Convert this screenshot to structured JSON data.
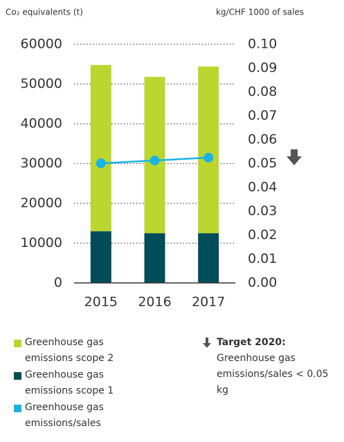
{
  "chart_data": {
    "type": "bar",
    "y_label": "Co₂ equivalents (t)",
    "y2_label": "kg/CHF 1000 of sales",
    "categories": [
      "2015",
      "2016",
      "2017"
    ],
    "series": [
      {
        "name": "Greenhouse gas emissions scope 2",
        "color": "#bcd630",
        "type": "bar",
        "values": [
          41800,
          39300,
          41900
        ]
      },
      {
        "name": "Greenhouse gas emissions scope 1",
        "color": "#004d5a",
        "type": "bar",
        "values": [
          13000,
          12500,
          12500
        ]
      },
      {
        "name": "Greenhouse gas emissions/sales",
        "color": "#19b3e6",
        "type": "line",
        "axis": "y2",
        "values": [
          0.0501,
          0.0513,
          0.0525
        ]
      }
    ],
    "ylim": [
      0,
      60000
    ],
    "yticks": [
      0,
      10000,
      20000,
      30000,
      40000,
      50000,
      60000
    ],
    "y2lim": [
      0,
      0.1
    ],
    "y2ticks": [
      {
        "value": 0,
        "label": "0.00"
      },
      {
        "value": 0.01,
        "label": "0.01"
      },
      {
        "value": 0.02,
        "label": "0.02"
      },
      {
        "value": 0.03,
        "label": "0.03"
      },
      {
        "value": 0.04,
        "label": "0.04"
      },
      {
        "value": 0.05,
        "label": "0.05"
      },
      {
        "value": 0.06,
        "label": "0.06"
      },
      {
        "value": 0.07,
        "label": "0.07"
      },
      {
        "value": 0.08,
        "label": "0.08"
      },
      {
        "value": 0.09,
        "label": "0.09"
      },
      {
        "value": 0.1,
        "label": "0.10"
      }
    ],
    "grid": true,
    "stacked": true,
    "target_label": "Target 2020:",
    "target_text": "Greenhouse gas emissions/sales < 0.05 kg"
  }
}
